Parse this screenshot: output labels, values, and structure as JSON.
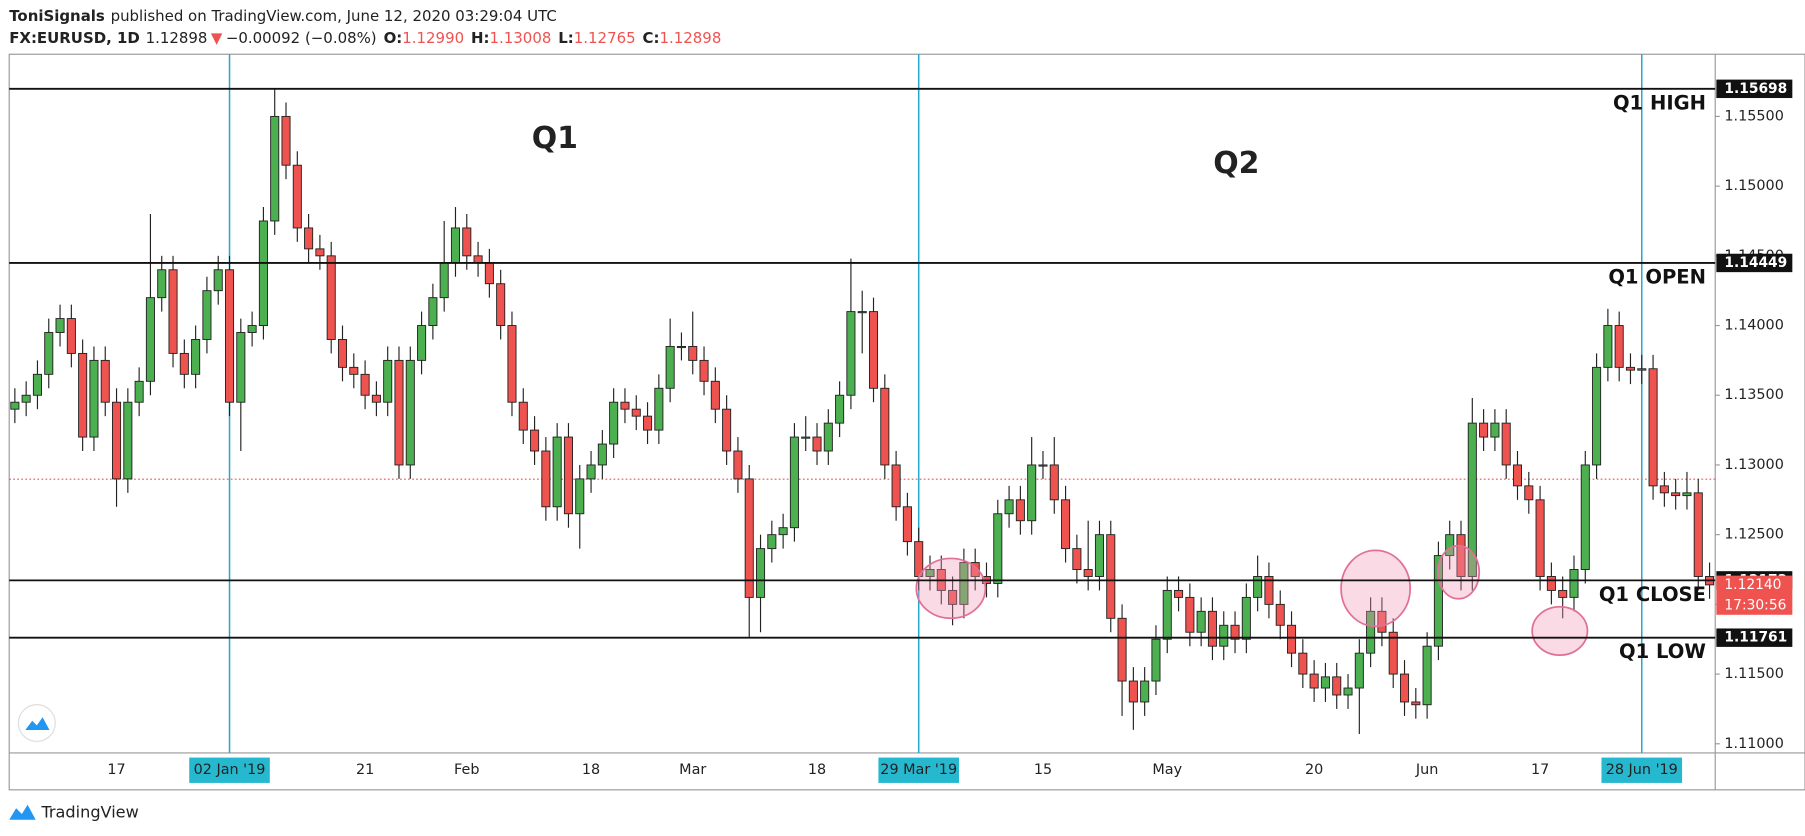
{
  "header": {
    "author": "ToniSignals",
    "published": "published on TradingView.com, June 12, 2020 03:29:04 UTC",
    "symbol": "FX:EURUSD, 1D",
    "price": "1.12898",
    "change_arrow": "▼",
    "change": "−0.00092 (−0.08%)",
    "ohlc": [
      {
        "label": "O:",
        "value": "1.12990"
      },
      {
        "label": "H:",
        "value": "1.13008"
      },
      {
        "label": "L:",
        "value": "1.12765"
      },
      {
        "label": "C:",
        "value": "1.12898"
      }
    ]
  },
  "chart_data": {
    "type": "candlestick",
    "annotations": [
      "Q1",
      "Q2"
    ],
    "categories": [
      null,
      null,
      null,
      null,
      null,
      null,
      null,
      null,
      null,
      "17",
      null,
      null,
      null,
      null,
      null,
      null,
      null,
      null,
      null,
      "02 Jan '19",
      null,
      null,
      null,
      null,
      null,
      null,
      null,
      null,
      null,
      null,
      null,
      "21",
      null,
      null,
      null,
      null,
      null,
      null,
      null,
      null,
      "Feb",
      null,
      null,
      null,
      null,
      null,
      null,
      null,
      null,
      null,
      null,
      "18",
      null,
      null,
      null,
      null,
      null,
      null,
      null,
      null,
      "Mar",
      null,
      null,
      null,
      null,
      null,
      null,
      null,
      null,
      null,
      null,
      "18",
      null,
      null,
      null,
      null,
      null,
      null,
      null,
      null,
      "29 Mar '19",
      null,
      null,
      null,
      null,
      null,
      null,
      null,
      null,
      null,
      null,
      "15",
      null,
      null,
      null,
      null,
      null,
      null,
      null,
      null,
      null,
      null,
      "May",
      null,
      null,
      null,
      null,
      null,
      null,
      null,
      null,
      null,
      null,
      null,
      null,
      "20",
      null,
      null,
      null,
      null,
      null,
      null,
      null,
      null,
      null,
      "Jun",
      null,
      null,
      null,
      null,
      null,
      null,
      null,
      null,
      null,
      "17",
      null,
      null,
      null,
      null,
      null,
      null,
      null,
      null,
      "28 Jun '19",
      null,
      null,
      null,
      null,
      null,
      null
    ],
    "marked_categories": [
      "02 Jan '19",
      "29 Mar '19",
      "28 Jun '19"
    ],
    "open": [
      1.134,
      1.1345,
      1.135,
      1.1365,
      1.1395,
      1.1405,
      1.138,
      1.132,
      1.1375,
      1.1345,
      1.129,
      1.1345,
      1.136,
      1.142,
      1.144,
      1.138,
      1.1365,
      1.139,
      1.1425,
      1.144,
      1.1345,
      1.1395,
      1.14,
      1.1475,
      1.155,
      1.1515,
      1.147,
      1.1455,
      1.145,
      1.139,
      1.137,
      1.1365,
      1.135,
      1.1345,
      1.1375,
      1.13,
      1.1375,
      1.14,
      1.142,
      1.1445,
      1.147,
      1.145,
      1.1445,
      1.143,
      1.14,
      1.1345,
      1.1325,
      1.131,
      1.127,
      1.132,
      1.1265,
      1.129,
      1.13,
      1.1315,
      1.1345,
      1.134,
      1.1335,
      1.1325,
      1.1355,
      1.1385,
      1.1385,
      1.1375,
      1.136,
      1.134,
      1.131,
      1.129,
      1.1205,
      1.124,
      1.125,
      1.1255,
      1.132,
      1.132,
      1.131,
      1.133,
      1.135,
      1.141,
      1.141,
      1.1355,
      1.13,
      1.127,
      1.1245,
      1.122,
      1.1225,
      1.121,
      1.12,
      1.123,
      1.122,
      1.1215,
      1.1265,
      1.1275,
      1.126,
      1.13,
      1.13,
      1.1275,
      1.124,
      1.1225,
      1.122,
      1.125,
      1.119,
      1.1145,
      1.113,
      1.1145,
      1.1175,
      1.121,
      1.1205,
      1.118,
      1.1195,
      1.117,
      1.1185,
      1.1175,
      1.1205,
      1.122,
      1.12,
      1.1185,
      1.1165,
      1.115,
      1.114,
      1.1148,
      1.1135,
      1.114,
      1.1165,
      1.1195,
      1.118,
      1.115,
      1.113,
      1.1128,
      1.117,
      1.1235,
      1.125,
      1.122,
      1.133,
      1.132,
      1.133,
      1.13,
      1.1285,
      1.1275,
      1.122,
      1.121,
      1.1205,
      1.1225,
      1.13,
      1.137,
      1.14,
      1.137,
      1.1368,
      1.1369,
      1.1285,
      1.128,
      1.1278,
      1.128,
      1.122
    ],
    "high": [
      1.1355,
      1.136,
      1.1375,
      1.1405,
      1.1415,
      1.1415,
      1.139,
      1.1385,
      1.1385,
      1.1355,
      1.1355,
      1.137,
      1.148,
      1.145,
      1.145,
      1.139,
      1.14,
      1.1435,
      1.145,
      1.145,
      1.1405,
      1.141,
      1.1485,
      1.157,
      1.156,
      1.1525,
      1.148,
      1.1465,
      1.146,
      1.14,
      1.138,
      1.1375,
      1.136,
      1.1385,
      1.1385,
      1.1385,
      1.141,
      1.143,
      1.1475,
      1.1485,
      1.148,
      1.146,
      1.1455,
      1.144,
      1.141,
      1.1355,
      1.1335,
      1.132,
      1.133,
      1.133,
      1.13,
      1.131,
      1.1325,
      1.1355,
      1.1355,
      1.135,
      1.1345,
      1.1365,
      1.1405,
      1.1395,
      1.141,
      1.1385,
      1.137,
      1.135,
      1.132,
      1.13,
      1.125,
      1.126,
      1.1265,
      1.133,
      1.1335,
      1.133,
      1.134,
      1.136,
      1.1448,
      1.1425,
      1.142,
      1.1365,
      1.131,
      1.128,
      1.1255,
      1.1235,
      1.1235,
      1.122,
      1.124,
      1.124,
      1.123,
      1.1275,
      1.1285,
      1.1285,
      1.132,
      1.131,
      1.132,
      1.1285,
      1.125,
      1.126,
      1.126,
      1.126,
      1.12,
      1.1155,
      1.1155,
      1.1185,
      1.122,
      1.122,
      1.1215,
      1.1205,
      1.1205,
      1.1195,
      1.1195,
      1.1215,
      1.1235,
      1.123,
      1.121,
      1.1195,
      1.1175,
      1.116,
      1.1158,
      1.1158,
      1.115,
      1.1175,
      1.1205,
      1.1205,
      1.119,
      1.116,
      1.114,
      1.118,
      1.1245,
      1.126,
      1.126,
      1.1348,
      1.134,
      1.134,
      1.134,
      1.131,
      1.1295,
      1.1285,
      1.123,
      1.122,
      1.1235,
      1.131,
      1.138,
      1.1412,
      1.141,
      1.138,
      1.1379,
      1.1379,
      1.1295,
      1.129,
      1.1295,
      1.129,
      1.123
    ],
    "low": [
      1.133,
      1.1335,
      1.134,
      1.1355,
      1.1385,
      1.137,
      1.131,
      1.131,
      1.1335,
      1.127,
      1.128,
      1.1335,
      1.135,
      1.141,
      1.137,
      1.1355,
      1.1355,
      1.138,
      1.1415,
      1.1335,
      1.131,
      1.1385,
      1.139,
      1.1465,
      1.1505,
      1.146,
      1.1445,
      1.144,
      1.138,
      1.136,
      1.1355,
      1.134,
      1.1335,
      1.1335,
      1.129,
      1.129,
      1.1365,
      1.139,
      1.141,
      1.1435,
      1.144,
      1.1435,
      1.142,
      1.139,
      1.1335,
      1.1315,
      1.13,
      1.126,
      1.126,
      1.1255,
      1.124,
      1.128,
      1.129,
      1.1305,
      1.133,
      1.1325,
      1.1315,
      1.1315,
      1.1345,
      1.1375,
      1.1365,
      1.135,
      1.133,
      1.13,
      1.128,
      1.1176,
      1.118,
      1.123,
      1.124,
      1.1245,
      1.131,
      1.13,
      1.13,
      1.132,
      1.134,
      1.138,
      1.1345,
      1.129,
      1.126,
      1.1235,
      1.121,
      1.121,
      1.12,
      1.1185,
      1.119,
      1.121,
      1.1205,
      1.1205,
      1.1255,
      1.125,
      1.125,
      1.129,
      1.1265,
      1.123,
      1.1215,
      1.121,
      1.121,
      1.118,
      1.112,
      1.111,
      1.112,
      1.1135,
      1.1165,
      1.1195,
      1.117,
      1.117,
      1.116,
      1.116,
      1.1165,
      1.1165,
      1.1195,
      1.119,
      1.1175,
      1.1155,
      1.114,
      1.113,
      1.113,
      1.1125,
      1.1125,
      1.1107,
      1.1155,
      1.117,
      1.114,
      1.112,
      1.1118,
      1.1118,
      1.116,
      1.1225,
      1.121,
      1.121,
      1.131,
      1.131,
      1.129,
      1.1275,
      1.1265,
      1.121,
      1.12,
      1.119,
      1.1195,
      1.1215,
      1.129,
      1.136,
      1.136,
      1.1358,
      1.1358,
      1.1275,
      1.127,
      1.1268,
      1.1268,
      1.121,
      1.1204
    ],
    "close": [
      1.1345,
      1.135,
      1.1365,
      1.1395,
      1.1405,
      1.138,
      1.132,
      1.1375,
      1.1345,
      1.129,
      1.1345,
      1.136,
      1.142,
      1.144,
      1.138,
      1.1365,
      1.139,
      1.1425,
      1.144,
      1.1345,
      1.1395,
      1.14,
      1.1475,
      1.155,
      1.1515,
      1.147,
      1.1455,
      1.145,
      1.139,
      1.137,
      1.1365,
      1.135,
      1.1345,
      1.1375,
      1.13,
      1.1375,
      1.14,
      1.142,
      1.1445,
      1.147,
      1.145,
      1.1445,
      1.143,
      1.14,
      1.1345,
      1.1325,
      1.131,
      1.127,
      1.132,
      1.1265,
      1.129,
      1.13,
      1.1315,
      1.1345,
      1.134,
      1.1335,
      1.1325,
      1.1355,
      1.1385,
      1.1385,
      1.1375,
      1.136,
      1.134,
      1.131,
      1.129,
      1.1205,
      1.124,
      1.125,
      1.1255,
      1.132,
      1.132,
      1.131,
      1.133,
      1.135,
      1.141,
      1.141,
      1.1355,
      1.13,
      1.127,
      1.1245,
      1.122,
      1.1225,
      1.121,
      1.12,
      1.123,
      1.122,
      1.1215,
      1.1265,
      1.1275,
      1.126,
      1.13,
      1.13,
      1.1275,
      1.124,
      1.1225,
      1.122,
      1.125,
      1.119,
      1.1145,
      1.113,
      1.1145,
      1.1175,
      1.121,
      1.1205,
      1.118,
      1.1195,
      1.117,
      1.1185,
      1.1175,
      1.1205,
      1.122,
      1.12,
      1.1185,
      1.1165,
      1.115,
      1.114,
      1.1148,
      1.1135,
      1.114,
      1.1165,
      1.1195,
      1.118,
      1.115,
      1.113,
      1.1128,
      1.117,
      1.1235,
      1.125,
      1.122,
      1.133,
      1.132,
      1.133,
      1.13,
      1.1285,
      1.1275,
      1.122,
      1.121,
      1.1205,
      1.1225,
      1.13,
      1.137,
      1.14,
      1.137,
      1.1368,
      1.1369,
      1.1285,
      1.128,
      1.1278,
      1.128,
      1.122,
      1.1214
    ],
    "up_color": "#4caf50",
    "down_color": "#ef5350",
    "levels": [
      {
        "name": "Q1 HIGH",
        "value": 1.15698
      },
      {
        "name": "Q1 OPEN",
        "value": 1.14449
      },
      {
        "name": "Q1 CLOSE",
        "value": 1.12172
      },
      {
        "name": "Q1 LOW",
        "value": 1.11761
      }
    ],
    "price_line": 1.12898,
    "last_price": {
      "value": 1.1214,
      "label": "1.12140"
    },
    "countdown": "17:30:56",
    "ylim": [
      1.10934,
      1.15946
    ],
    "yticks": [
      {
        "value": 1.11,
        "label": "1.11000"
      },
      {
        "value": 1.115,
        "label": "1.11500"
      },
      {
        "value": 1.12,
        "label": "1.12000"
      },
      {
        "value": 1.125,
        "label": "1.12500"
      },
      {
        "value": 1.13,
        "label": "1.13000"
      },
      {
        "value": 1.135,
        "label": "1.13500"
      },
      {
        "value": 1.14,
        "label": "1.14000"
      },
      {
        "value": 1.145,
        "label": "1.14500"
      },
      {
        "value": 1.15,
        "label": "1.15000"
      },
      {
        "value": 1.155,
        "label": "1.15500"
      }
    ]
  },
  "footer": "TradingView"
}
